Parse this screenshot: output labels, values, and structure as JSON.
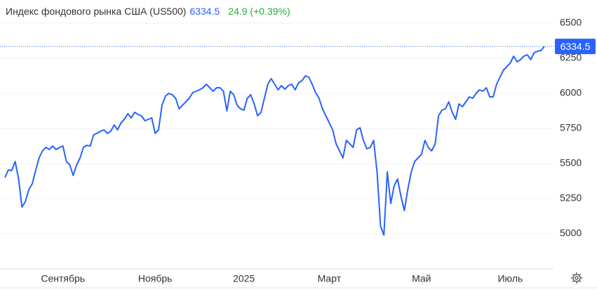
{
  "chart_data": {
    "type": "line",
    "title": "Индекс фондового рынка США (US500)",
    "last": 6334.5,
    "change_text": "24.9 (+0.39%)",
    "series": [
      {
        "color": "#2962ff",
        "values": [
          5400,
          5455,
          5450,
          5515,
          5390,
          5190,
          5230,
          5315,
          5355,
          5450,
          5540,
          5590,
          5615,
          5600,
          5625,
          5600,
          5615,
          5625,
          5515,
          5490,
          5415,
          5490,
          5540,
          5615,
          5630,
          5625,
          5705,
          5715,
          5730,
          5740,
          5715,
          5730,
          5775,
          5740,
          5790,
          5815,
          5855,
          5825,
          5865,
          5850,
          5840,
          5805,
          5815,
          5825,
          5715,
          5740,
          5915,
          5980,
          6000,
          5990,
          5965,
          5890,
          5915,
          5940,
          5965,
          6005,
          6015,
          6025,
          6040,
          6065,
          6040,
          6015,
          6040,
          6040,
          6015,
          5875,
          6015,
          5990,
          5915,
          5890,
          5880,
          5965,
          5990,
          5925,
          5840,
          5865,
          5965,
          6065,
          6105,
          6065,
          6025,
          6055,
          6030,
          6055,
          6065,
          6025,
          6075,
          6090,
          6125,
          6115,
          6065,
          6005,
          5965,
          5890,
          5840,
          5790,
          5740,
          5640,
          5590,
          5540,
          5665,
          5640,
          5615,
          5740,
          5755,
          5665,
          5605,
          5615,
          5665,
          5440,
          5055,
          4990,
          5440,
          5215,
          5340,
          5390,
          5265,
          5165,
          5315,
          5440,
          5515,
          5540,
          5565,
          5665,
          5615,
          5590,
          5640,
          5840,
          5880,
          5890,
          5940,
          5865,
          5815,
          5925,
          5905,
          5940,
          5975,
          5965,
          6000,
          6025,
          6015,
          6040,
          5975,
          5975,
          6065,
          6115,
          6165,
          6190,
          6215,
          6265,
          6225,
          6240,
          6265,
          6275,
          6240,
          6290,
          6300,
          6305,
          6334.5
        ]
      }
    ],
    "xticks": [
      {
        "value": 17,
        "label": "Сентябрь"
      },
      {
        "value": 44,
        "label": "Ноябрь"
      },
      {
        "value": 70,
        "label": "2025"
      },
      {
        "value": 95,
        "label": "Март"
      },
      {
        "value": 122,
        "label": "Май"
      },
      {
        "value": 148,
        "label": "Июль"
      }
    ],
    "ylim": [
      4750,
      6665
    ],
    "yticks": [
      5000,
      5250,
      5500,
      5750,
      6000,
      6250,
      6500
    ],
    "grid": true
  }
}
